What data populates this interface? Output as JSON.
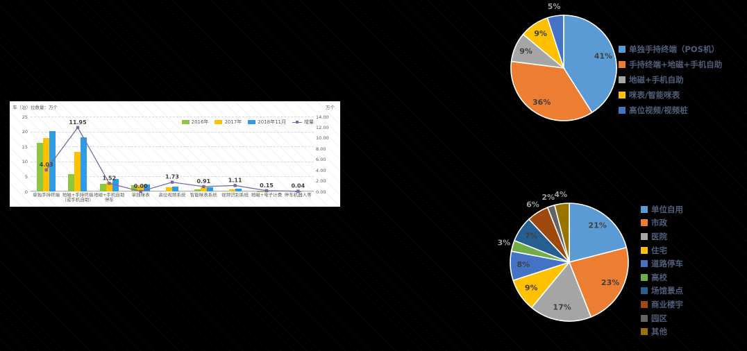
{
  "background": "#000000",
  "chart_data": [
    {
      "type": "bar+line",
      "y_axis_title": "车（泊）位数量：万个",
      "y2_axis_title": "万个",
      "y_ticks": [
        0,
        5,
        10,
        15,
        20,
        25
      ],
      "ylim": [
        0,
        25
      ],
      "y2_ticks": [
        "0.00",
        "2.00",
        "4.00",
        "6.00",
        "8.00",
        "10.00",
        "12.00",
        "14.00"
      ],
      "y2lim": [
        0,
        14
      ],
      "grid": true,
      "legend_position": "top-right-inside",
      "categories": [
        "单独手持终端",
        "地磁+手持终端\n（或手机自助）",
        "地磁+手机自助停车",
        "单独咪表",
        "高位视频系统",
        "智能咪表系统",
        "视频识别系统",
        "地磁+电子计费",
        "停车机器人等"
      ],
      "series": [
        {
          "name": "2016年",
          "color": "#8CC540",
          "values": [
            16.3,
            5.8,
            2.5,
            2.2,
            0,
            0.8,
            0,
            0.1,
            0
          ]
        },
        {
          "name": "2017年",
          "color": "#FFC000",
          "values": [
            17.8,
            13.1,
            3.1,
            2.2,
            1.3,
            1.4,
            0.7,
            0.1,
            0
          ]
        },
        {
          "name": "2018年11月",
          "color": "#2E9BE8",
          "values": [
            20.2,
            18.1,
            4.1,
            2.3,
            1.6,
            1.5,
            1.0,
            0.15,
            0.05
          ]
        }
      ],
      "line_series": {
        "name": "增量",
        "color": "#7A68A6",
        "values": [
          4.03,
          11.95,
          1.52,
          0.0,
          1.73,
          0.91,
          1.11,
          0.15,
          0.04
        ],
        "labels": [
          "4.03",
          "11.95",
          "1.52",
          "0.00",
          "1.73",
          "0.91",
          "1.11",
          "0.15",
          "0.04"
        ]
      }
    },
    {
      "type": "pie",
      "legend_position": "right",
      "slices": [
        {
          "label": "单独手持终端（POS机）",
          "pct": 41,
          "pct_label": "41%",
          "color": "#5B9BD5"
        },
        {
          "label": "手持终端+地磁+手机自助",
          "pct": 36,
          "pct_label": "36%",
          "color": "#ED7D31"
        },
        {
          "label": "地磁+手机自助",
          "pct": 9,
          "pct_label": "9%",
          "color": "#A5A5A5"
        },
        {
          "label": "咪表/智能咪表",
          "pct": 9,
          "pct_label": "9%",
          "color": "#FFC000"
        },
        {
          "label": "高位视频/视频桩",
          "pct": 5,
          "pct_label": "5%",
          "color": "#4472C4"
        }
      ]
    },
    {
      "type": "pie",
      "legend_position": "right",
      "slices": [
        {
          "label": "单位自用",
          "pct": 21,
          "pct_label": "21%",
          "color": "#5B9BD5"
        },
        {
          "label": "市政",
          "pct": 23,
          "pct_label": "23%",
          "color": "#ED7D31"
        },
        {
          "label": "医院",
          "pct": 17,
          "pct_label": "17%",
          "color": "#A5A5A5"
        },
        {
          "label": "住宅",
          "pct": 9,
          "pct_label": "9%",
          "color": "#FFC000"
        },
        {
          "label": "道路停车",
          "pct": 8,
          "pct_label": "8%",
          "color": "#4472C4"
        },
        {
          "label": "高校",
          "pct": 3,
          "pct_label": "3%",
          "color": "#70AD47"
        },
        {
          "label": "场馆景点",
          "pct": 7,
          "pct_label": "7%",
          "color": "#255E91"
        },
        {
          "label": "商业楼宇",
          "pct": 6,
          "pct_label": "6%",
          "color": "#9E480E"
        },
        {
          "label": "园区",
          "pct": 2,
          "pct_label": "2%",
          "color": "#636363"
        },
        {
          "label": "其他",
          "pct": 4,
          "pct_label": "4%",
          "color": "#997300"
        }
      ]
    }
  ]
}
